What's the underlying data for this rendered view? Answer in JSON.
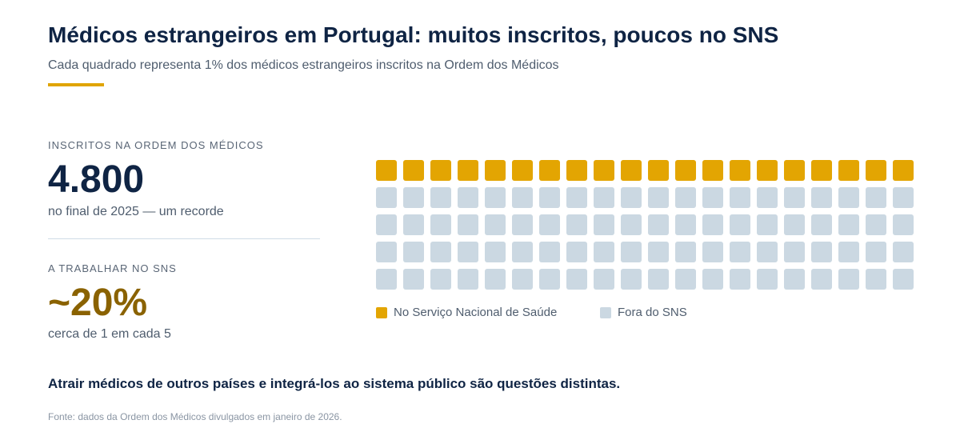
{
  "title": "Médicos estrangeiros em Portugal: muitos inscritos, poucos no SNS",
  "subtitle": "Cada quadrado representa 1% dos médicos estrangeiros inscritos na Ordem dos Médicos",
  "stats": {
    "registered": {
      "label": "INSCRITOS NA ORDEM DOS MÉDICOS",
      "value": "4.800",
      "note": "no final de 2025 — um recorde"
    },
    "sns": {
      "label": "A TRABALHAR NO SNS",
      "value": "~20%",
      "note": "cerca de 1 em cada 5"
    }
  },
  "takeaway": "Atrair médicos de outros países e integrá-los ao sistema público são questões distintas.",
  "source": "Fonte: dados da Ordem dos Médicos divulgados em janeiro de 2026.",
  "colors": {
    "accent": "#e0a400",
    "title": "#0f2444",
    "highlight_value": "#8a6200",
    "sns": "#e3a502",
    "outside": "#cbd8e2"
  },
  "chart_data": {
    "type": "waffle",
    "total_squares": 100,
    "unit": "1%",
    "columns": 20,
    "rows": 5,
    "series": [
      {
        "name": "No Serviço Nacional de Saúde",
        "value": 20,
        "color": "#e3a502"
      },
      {
        "name": "Fora do SNS",
        "value": 80,
        "color": "#cbd8e2"
      }
    ],
    "legend_position": "bottom-left"
  }
}
